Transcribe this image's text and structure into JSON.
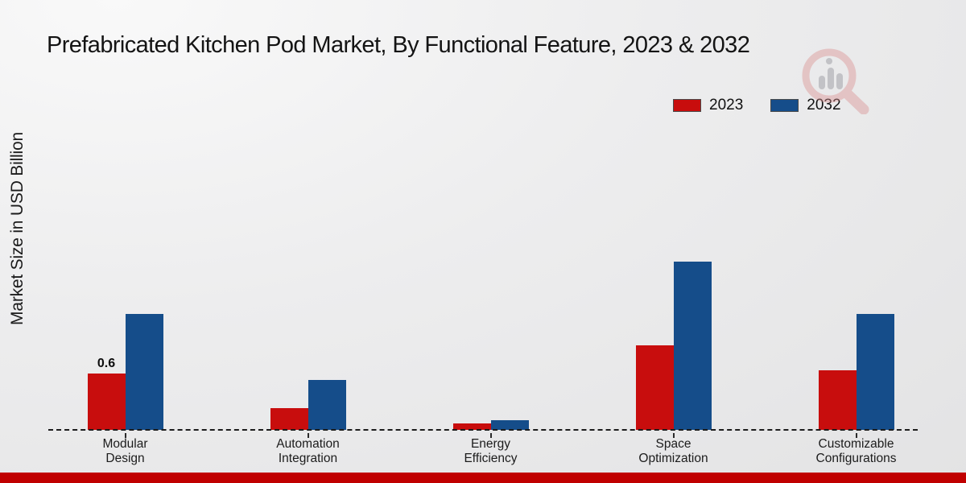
{
  "title": "Prefabricated Kitchen Pod Market, By Functional Feature, 2023 & 2032",
  "y_axis_label": "Market Size in USD Billion",
  "legend": {
    "items": [
      {
        "label": "2023",
        "color": "#c80d0d"
      },
      {
        "label": "2032",
        "color": "#154d8a"
      }
    ]
  },
  "colors": {
    "series_2023": "#c80d0d",
    "series_2032": "#154d8a",
    "footer_bar": "#c00000",
    "baseline": "#1c1c1c",
    "background": "#e9e9ea"
  },
  "watermark_icon": "magnifier-bar-chart-logo",
  "chart_data": {
    "type": "bar",
    "title": "Prefabricated Kitchen Pod Market, By Functional Feature, 2023 & 2032",
    "xlabel": "",
    "ylabel": "Market Size in USD Billion",
    "categories": [
      "Modular Design",
      "Automation Integration",
      "Energy Efficiency",
      "Space Optimization",
      "Customizable Configurations"
    ],
    "category_label_lines": [
      [
        "Modular",
        "Design"
      ],
      [
        "Automation",
        "Integration"
      ],
      [
        "Energy",
        "Efficiency"
      ],
      [
        "Space",
        "Optimization"
      ],
      [
        "Customizable",
        "Configurations"
      ]
    ],
    "series": [
      {
        "name": "2023",
        "color": "#c80d0d",
        "values": [
          0.6,
          0.23,
          0.07,
          0.9,
          0.63
        ]
      },
      {
        "name": "2032",
        "color": "#154d8a",
        "values": [
          1.23,
          0.53,
          0.1,
          1.79,
          1.23
        ]
      }
    ],
    "data_labels": [
      {
        "category_index": 0,
        "series": "2023",
        "text": "0.6"
      }
    ],
    "ylim": [
      0,
      2
    ],
    "grid": false,
    "legend_position": "top-right",
    "baseline_style": "dashed",
    "unit": "USD Billion"
  }
}
